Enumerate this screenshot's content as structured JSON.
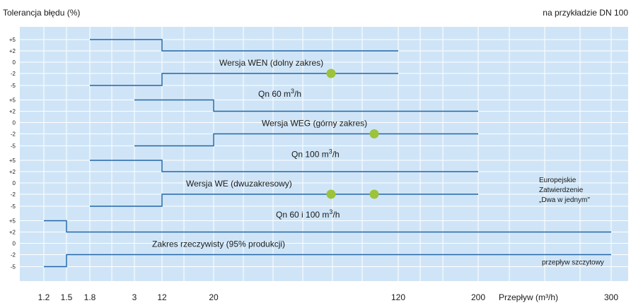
{
  "chart_data": {
    "type": "line",
    "title": "Tolerancja błędu (%)",
    "subtitle": "na przykładzie DN 100",
    "xlabel": "Przepływ (m³/h)",
    "x_ticks": [
      "1.2",
      "1.5",
      "1.8",
      "3",
      "12",
      "20",
      "120",
      "200",
      "300"
    ],
    "band_y_ticks": [
      "+5",
      "+2",
      "0",
      "-2",
      "-5"
    ],
    "grid": true,
    "colors": {
      "background": "#cfe5f7",
      "grid": "#ffffff",
      "line": "#2466a8",
      "marker": "#9cc33b"
    },
    "bands": [
      {
        "name": "Wersja WEN (dolny zakres)",
        "caption_html": "Qn 60 m<tspan baseline-shift=\"super\" font-size=\"9\">3</tspan>/h",
        "upper": [
          {
            "x_tick": "1.8",
            "y": 5
          },
          {
            "x_tick": "12",
            "y": 5
          },
          {
            "x_tick": "12",
            "y": 2
          },
          {
            "x_tick": "120",
            "y": 2
          }
        ],
        "lower": [
          {
            "x_tick": "1.8",
            "y": -5
          },
          {
            "x_tick": "12",
            "y": -5
          },
          {
            "x_tick": "12",
            "y": -2
          },
          {
            "x_tick": "120",
            "y": -2
          }
        ],
        "markers": [
          "Qn60"
        ]
      },
      {
        "name": "Wersja WEG (górny zakres)",
        "caption_html": "Qn 100 m<tspan baseline-shift=\"super\" font-size=\"9\">3</tspan>/h",
        "upper": [
          {
            "x_tick": "3",
            "y": 5
          },
          {
            "x_tick": "20",
            "y": 5
          },
          {
            "x_tick": "20",
            "y": 2
          },
          {
            "x_tick": "200",
            "y": 2
          }
        ],
        "lower": [
          {
            "x_tick": "3",
            "y": -5
          },
          {
            "x_tick": "20",
            "y": -5
          },
          {
            "x_tick": "20",
            "y": -2
          },
          {
            "x_tick": "200",
            "y": -2
          }
        ],
        "markers": [
          "Qn100"
        ]
      },
      {
        "name": "Wersja WE (dwuzakresowy)",
        "caption_html": "Qn 60 i 100 m<tspan baseline-shift=\"super\" font-size=\"9\">3</tspan>/h",
        "upper": [
          {
            "x_tick": "1.8",
            "y": 5
          },
          {
            "x_tick": "12",
            "y": 5
          },
          {
            "x_tick": "12",
            "y": 2
          },
          {
            "x_tick": "200",
            "y": 2
          }
        ],
        "lower": [
          {
            "x_tick": "1.8",
            "y": -5
          },
          {
            "x_tick": "12",
            "y": -5
          },
          {
            "x_tick": "12",
            "y": -2
          },
          {
            "x_tick": "200",
            "y": -2
          }
        ],
        "markers": [
          "Qn60",
          "Qn100"
        ],
        "side_note": [
          "Europejskie",
          "Zatwierdzenie",
          "„Dwa w jednym\""
        ]
      },
      {
        "name": "Zakres rzeczywisty (95% produkcji)",
        "caption_html": "",
        "upper": [
          {
            "x_tick": "1.2",
            "y": 5
          },
          {
            "x_tick": "1.5",
            "y": 5
          },
          {
            "x_tick": "1.5",
            "y": 2
          },
          {
            "x_tick": "300",
            "y": 2
          }
        ],
        "lower": [
          {
            "x_tick": "1.2",
            "y": -5
          },
          {
            "x_tick": "1.5",
            "y": -5
          },
          {
            "x_tick": "1.5",
            "y": -2
          },
          {
            "x_tick": "300",
            "y": -2
          }
        ],
        "markers": [],
        "side_note": [
          "przepływ szczytowy"
        ]
      }
    ]
  }
}
